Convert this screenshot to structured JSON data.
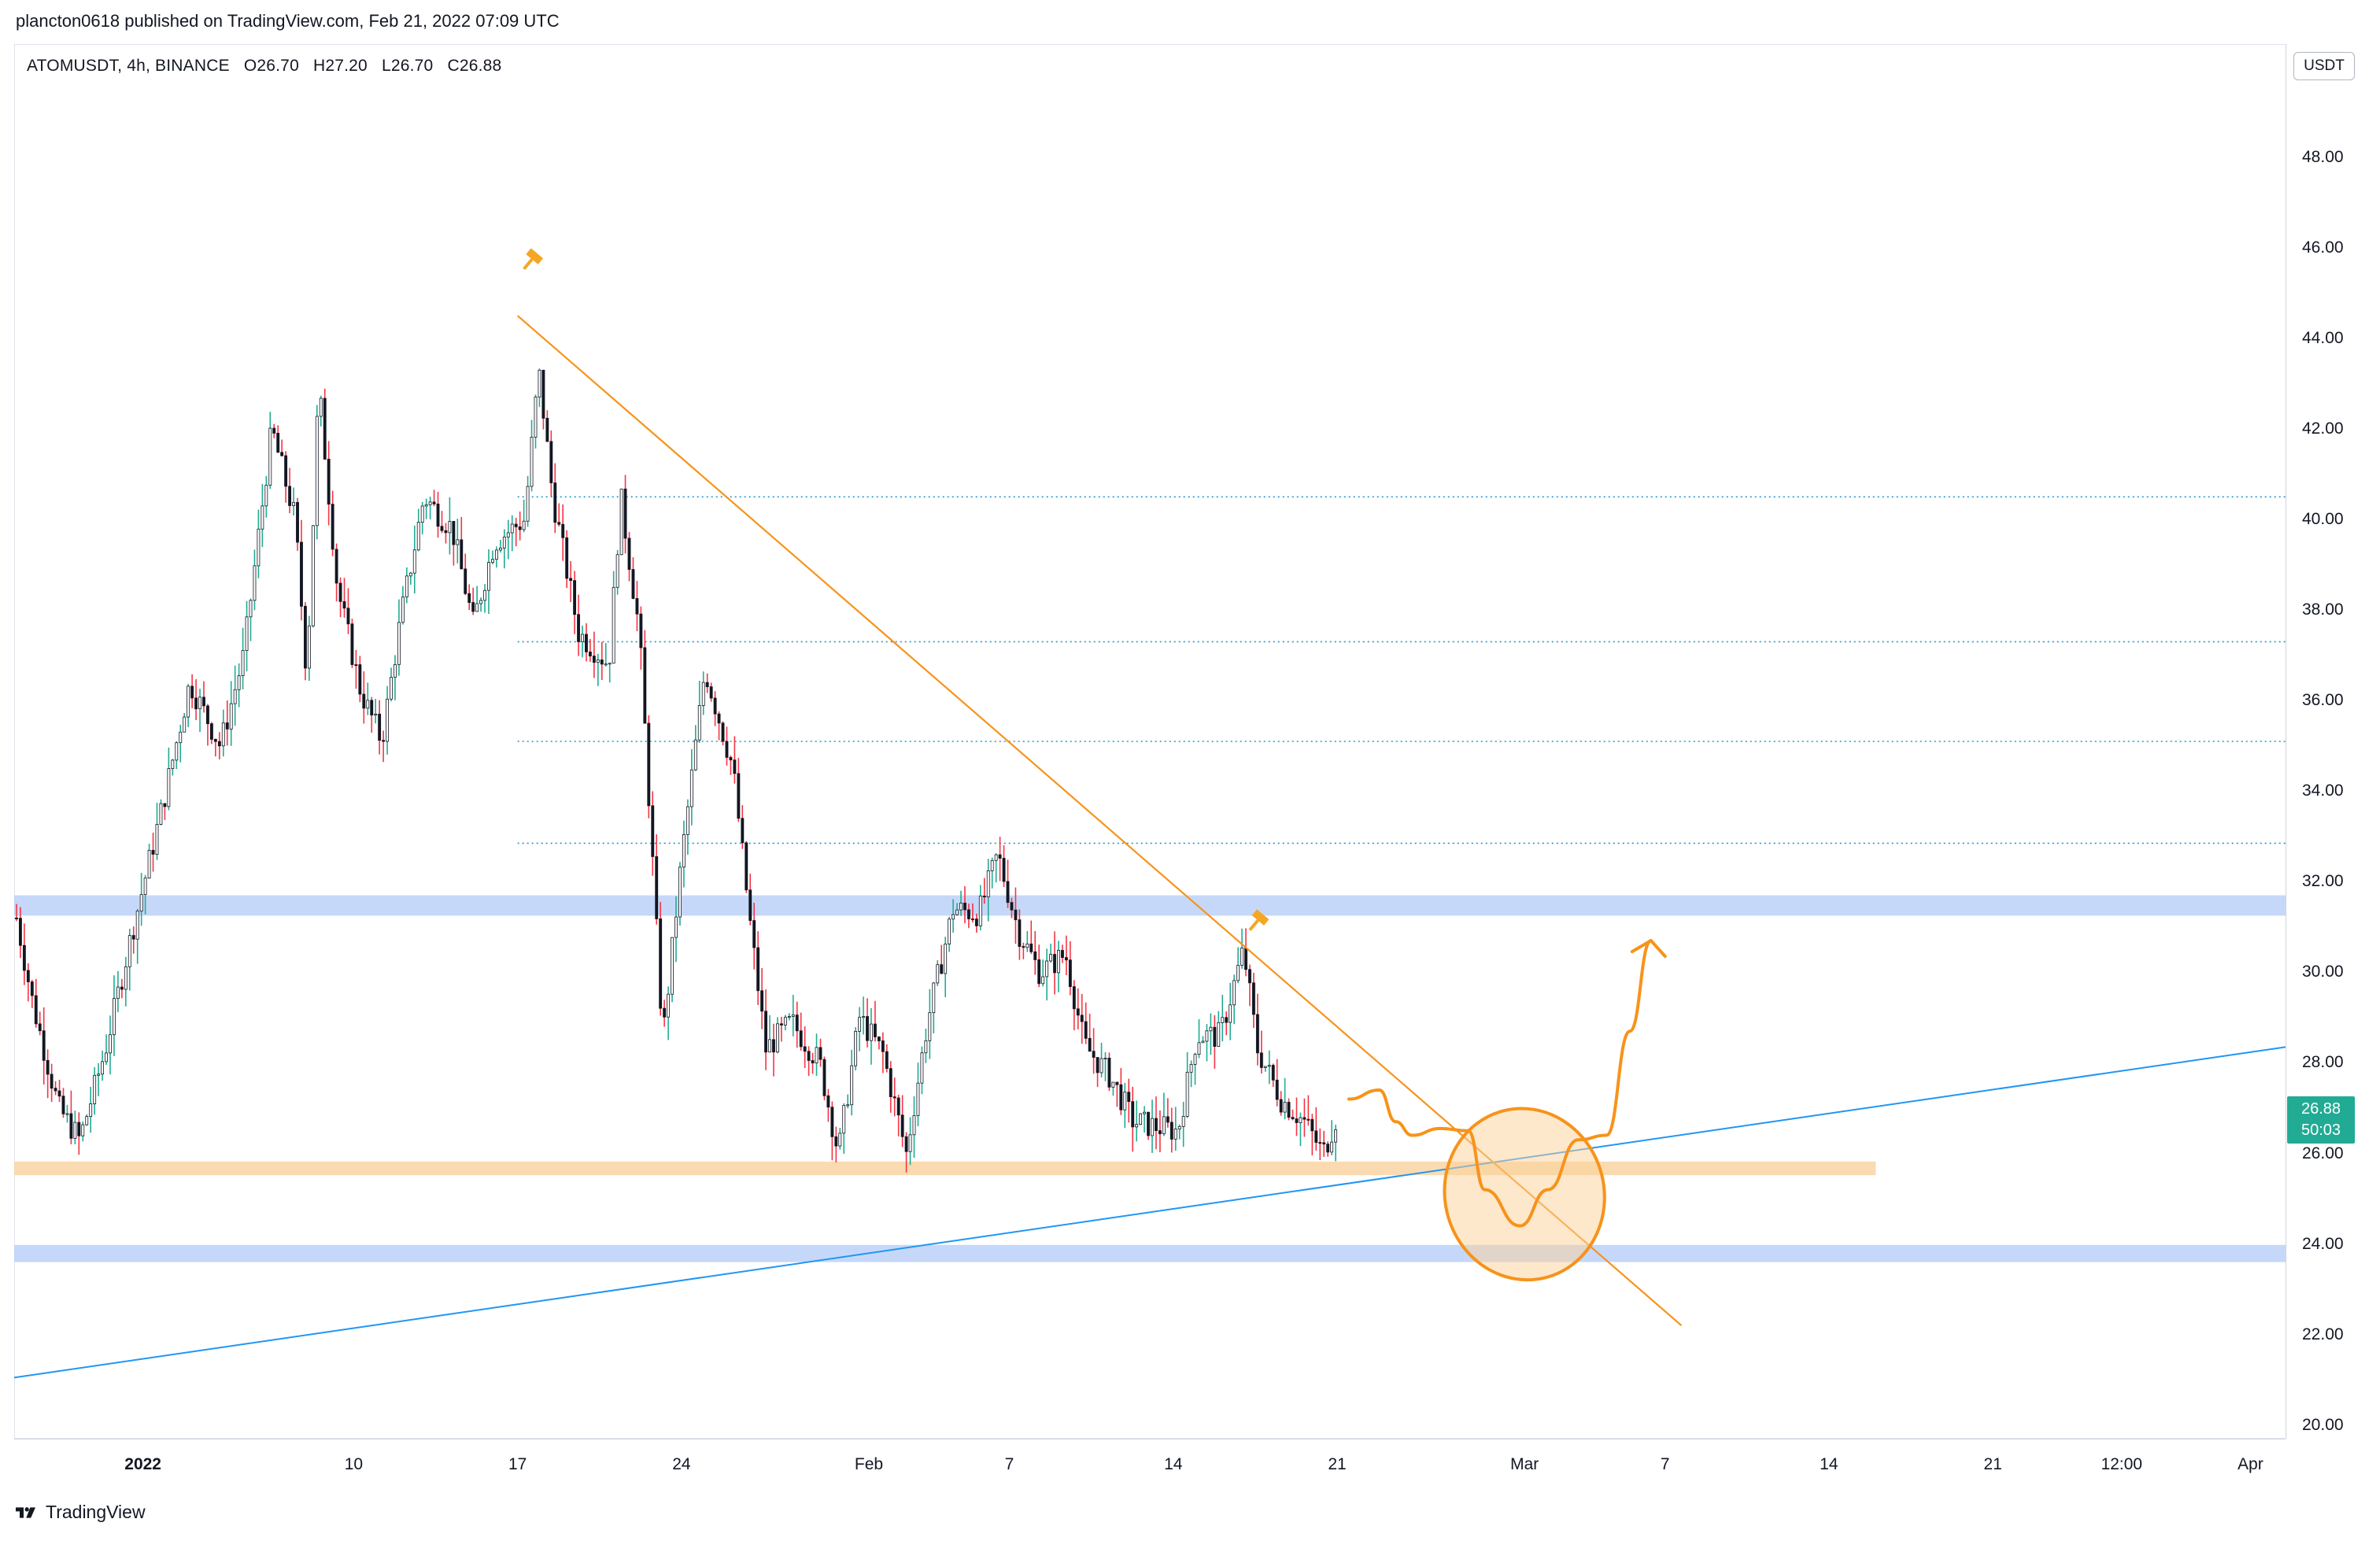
{
  "header": {
    "published_line": "plancton0618 published on TradingView.com, Feb 21, 2022 07:09 UTC"
  },
  "legend": {
    "symbol": "ATOMUSDT, 4h, BINANCE",
    "open": "O26.70",
    "high": "H27.20",
    "low": "L26.70",
    "close": "C26.88"
  },
  "price_axis": {
    "currency": "USDT",
    "last_price": "26.88",
    "countdown": "50:03"
  },
  "footer": {
    "brand": "TradingView"
  },
  "colors": {
    "up": "#22ab94",
    "down": "#f23645",
    "candle_body": "#131722",
    "trendline": "#f7931a",
    "support_line": "#2962ff",
    "blue_zone": "#b3cbf7",
    "orange_zone": "#fad7a8"
  },
  "chart_data": {
    "type": "candlestick",
    "symbol": "ATOMUSDT",
    "interval": "4h",
    "exchange": "BINANCE",
    "ylim": [
      19.7,
      50.5
    ],
    "y_ticks": [
      "20.00",
      "22.00",
      "24.00",
      "26.00",
      "28.00",
      "30.00",
      "32.00",
      "34.00",
      "36.00",
      "38.00",
      "40.00",
      "42.00",
      "44.00",
      "46.00",
      "48.00"
    ],
    "x_ticks": [
      {
        "label": "2022",
        "bold": true,
        "day": 1
      },
      {
        "label": "10",
        "day": 10
      },
      {
        "label": "17",
        "day": 17
      },
      {
        "label": "24",
        "day": 24
      },
      {
        "label": "Feb",
        "bold": false,
        "day": 32
      },
      {
        "label": "7",
        "day": 38
      },
      {
        "label": "14",
        "day": 45
      },
      {
        "label": "21",
        "day": 52
      },
      {
        "label": "Mar",
        "day": 60
      },
      {
        "label": "7",
        "day": 66
      },
      {
        "label": "14",
        "day": 73
      },
      {
        "label": "21",
        "day": 80
      },
      {
        "label": "12:00",
        "day": 85.5
      },
      {
        "label": "Apr",
        "day": 91
      }
    ],
    "x_axis_days": {
      "start": -4.5,
      "end": 92.5
    },
    "price_path_keypoints": [
      [
        -4.4,
        31.2
      ],
      [
        -3.7,
        29.3
      ],
      [
        -2.6,
        27.0
      ],
      [
        -1.7,
        26.3
      ],
      [
        -0.6,
        28.3
      ],
      [
        0.4,
        30.6
      ],
      [
        1.8,
        33.6
      ],
      [
        3.0,
        36.4
      ],
      [
        4.3,
        35.0
      ],
      [
        5.3,
        37.0
      ],
      [
        6.5,
        42.0
      ],
      [
        7.5,
        40.0
      ],
      [
        8.0,
        36.5
      ],
      [
        8.5,
        43.0
      ],
      [
        9.3,
        38.5
      ],
      [
        10.3,
        36.2
      ],
      [
        11.2,
        35.1
      ],
      [
        12.0,
        37.8
      ],
      [
        13.0,
        40.5
      ],
      [
        14.2,
        39.8
      ],
      [
        15.1,
        37.7
      ],
      [
        16.0,
        39.5
      ],
      [
        17.3,
        40.0
      ],
      [
        17.9,
        43.3
      ],
      [
        18.5,
        40.5
      ],
      [
        19.6,
        37.5
      ],
      [
        20.9,
        36.8
      ],
      [
        21.4,
        40.5
      ],
      [
        22.2,
        37.5
      ],
      [
        23.2,
        28.5
      ],
      [
        24.0,
        32.5
      ],
      [
        25.0,
        36.7
      ],
      [
        26.2,
        34.5
      ],
      [
        26.9,
        31.2
      ],
      [
        27.6,
        28.3
      ],
      [
        28.7,
        28.9
      ],
      [
        29.9,
        28.0
      ],
      [
        30.7,
        26.0
      ],
      [
        31.6,
        29.0
      ],
      [
        32.6,
        28.2
      ],
      [
        33.6,
        26.0
      ],
      [
        34.5,
        28.9
      ],
      [
        35.6,
        31.4
      ],
      [
        36.7,
        31.3
      ],
      [
        37.5,
        32.6
      ],
      [
        38.4,
        30.9
      ],
      [
        39.3,
        30.0
      ],
      [
        40.4,
        30.4
      ],
      [
        41.2,
        28.4
      ],
      [
        42.3,
        27.7
      ],
      [
        43.3,
        26.7
      ],
      [
        44.2,
        26.6
      ],
      [
        45.2,
        26.5
      ],
      [
        46.0,
        28.6
      ],
      [
        47.0,
        28.6
      ],
      [
        48.0,
        30.5
      ],
      [
        48.6,
        28.3
      ],
      [
        49.6,
        27.2
      ],
      [
        50.6,
        26.7
      ],
      [
        51.4,
        26.0
      ],
      [
        52.0,
        26.85
      ]
    ],
    "annotations": {
      "descending_trendline": {
        "from": [
          17.0,
          44.5
        ],
        "to": [
          66.7,
          22.2
        ]
      },
      "ascending_trendline": {
        "from": [
          -4.5,
          21.05
        ],
        "to": [
          92.5,
          28.35
        ]
      },
      "horizontal_dotted_levels": [
        40.5,
        37.3,
        35.1,
        32.85
      ],
      "blue_zones": [
        [
          31.25,
          31.7
        ],
        [
          23.6,
          23.98
        ]
      ],
      "orange_zone": {
        "range": [
          25.52,
          25.82
        ],
        "until_day": 75
      },
      "projection_path": [
        [
          52.5,
          27.2
        ],
        [
          53.8,
          27.4
        ],
        [
          54.5,
          26.7
        ],
        [
          55.2,
          26.4
        ],
        [
          56.4,
          26.55
        ],
        [
          57.6,
          26.5
        ],
        [
          58.3,
          25.2
        ],
        [
          59.8,
          24.4
        ],
        [
          61.0,
          25.2
        ],
        [
          62.3,
          26.3
        ],
        [
          63.5,
          26.4
        ],
        [
          64.5,
          28.7
        ],
        [
          65.4,
          30.7
        ]
      ],
      "highlight_ellipse": {
        "center": [
          60.0,
          25.1
        ],
        "rx_days": 3.4,
        "ry_price": 1.9
      },
      "flag_markers": [
        [
          17.7,
          45.8
        ],
        [
          48.7,
          31.2
        ]
      ]
    }
  }
}
